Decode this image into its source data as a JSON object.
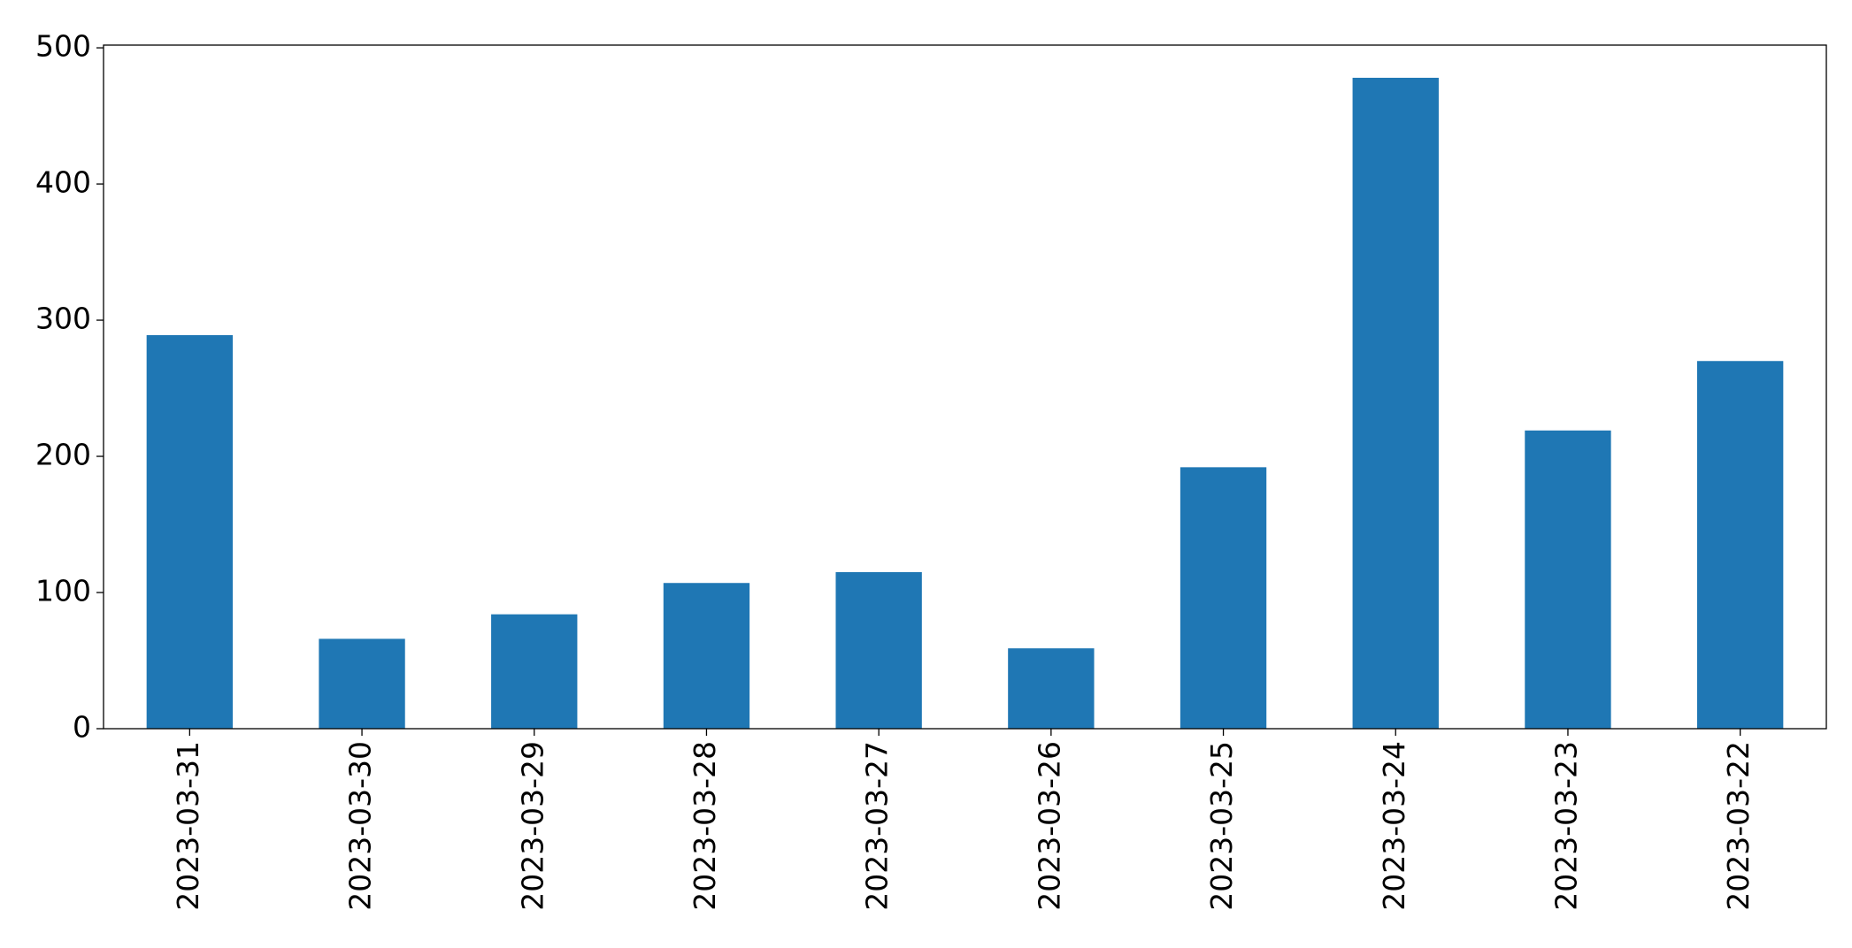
{
  "chart_data": {
    "type": "bar",
    "categories": [
      "2023-03-31",
      "2023-03-30",
      "2023-03-29",
      "2023-03-28",
      "2023-03-27",
      "2023-03-26",
      "2023-03-25",
      "2023-03-24",
      "2023-03-23",
      "2023-03-22"
    ],
    "values": [
      289,
      66,
      84,
      107,
      115,
      59,
      192,
      478,
      219,
      270
    ],
    "color": "#1f77b4",
    "ylim": [
      0,
      502
    ],
    "yticks": [
      0,
      100,
      200,
      300,
      400,
      500
    ],
    "grid": false
  }
}
